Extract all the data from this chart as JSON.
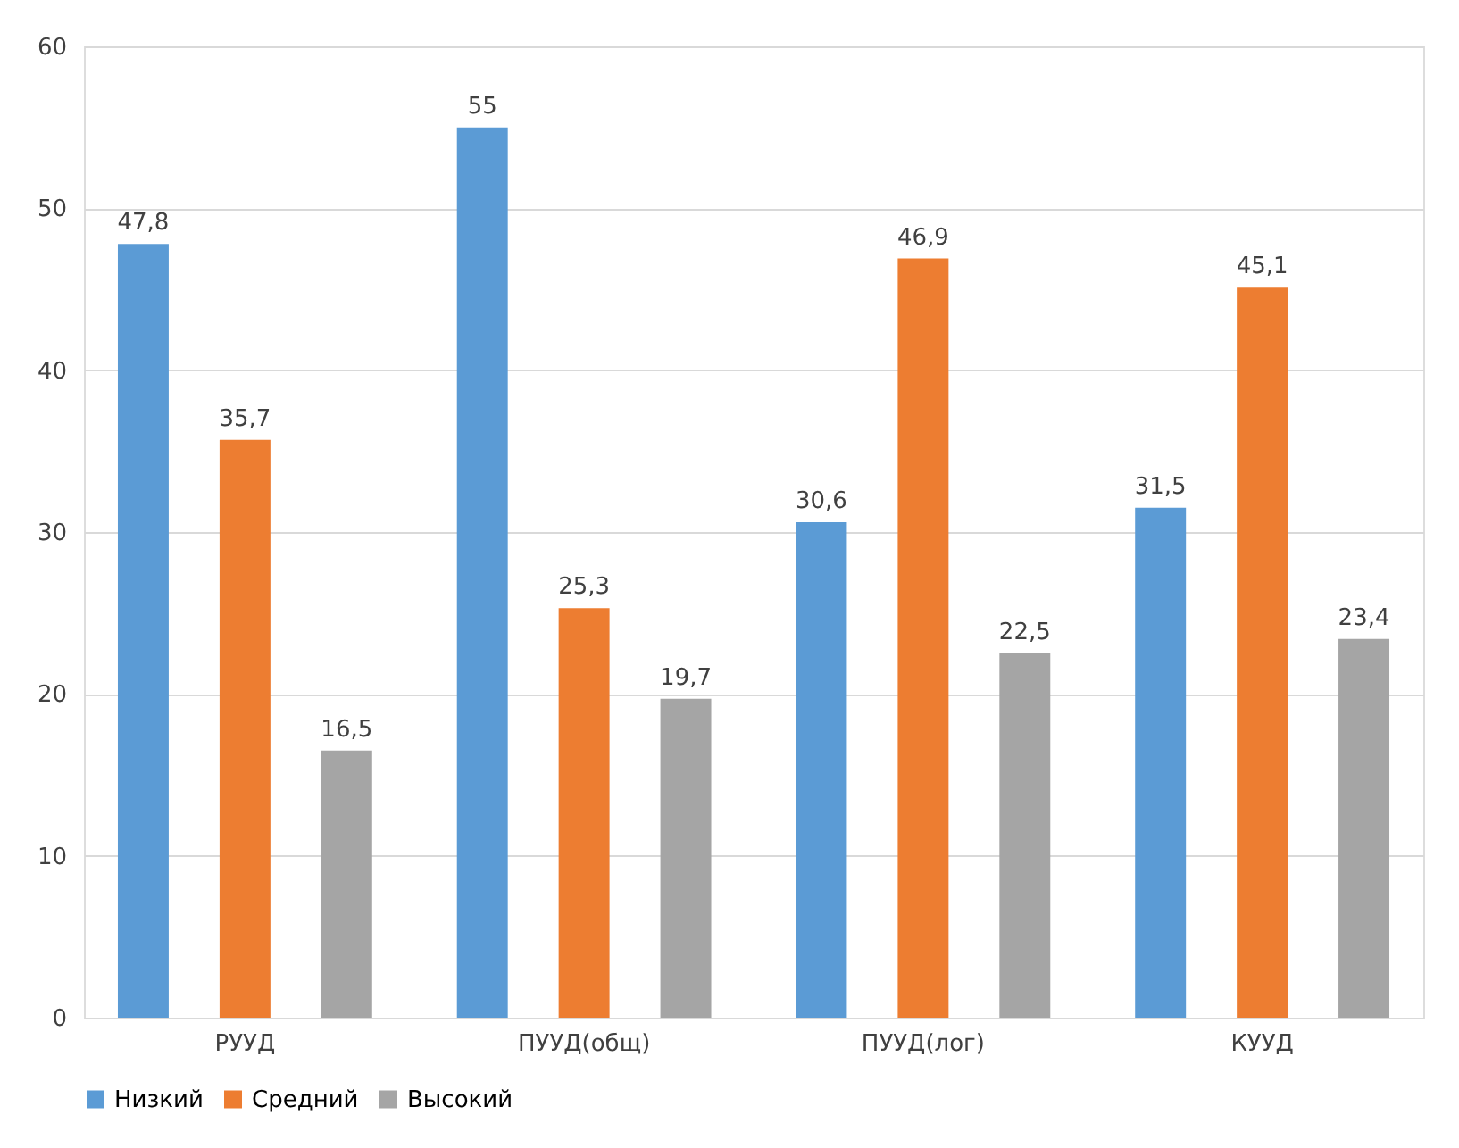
{
  "chart_data": {
    "type": "bar",
    "categories": [
      "РУУД",
      "ПУУД(общ)",
      "ПУУД(лог)",
      "КУУД"
    ],
    "series": [
      {
        "name": "Низкий",
        "color": "#5b9bd5",
        "values": [
          47.8,
          55,
          30.6,
          31.5
        ],
        "value_labels": [
          "47,8",
          "55",
          "30,6",
          "31,5"
        ]
      },
      {
        "name": "Средний",
        "color": "#ed7d31",
        "values": [
          35.7,
          25.3,
          46.9,
          45.1
        ],
        "value_labels": [
          "35,7",
          "25,3",
          "46,9",
          "45,1"
        ]
      },
      {
        "name": "Высокий",
        "color": "#a5a5a5",
        "values": [
          16.5,
          19.7,
          22.5,
          23.4
        ],
        "value_labels": [
          "16,5",
          "19,7",
          "22,5",
          "23,4"
        ]
      }
    ],
    "ylim": [
      0,
      60
    ],
    "yticks": [
      0,
      10,
      20,
      30,
      40,
      50,
      60
    ],
    "grid": "y",
    "legend": "bottom"
  }
}
